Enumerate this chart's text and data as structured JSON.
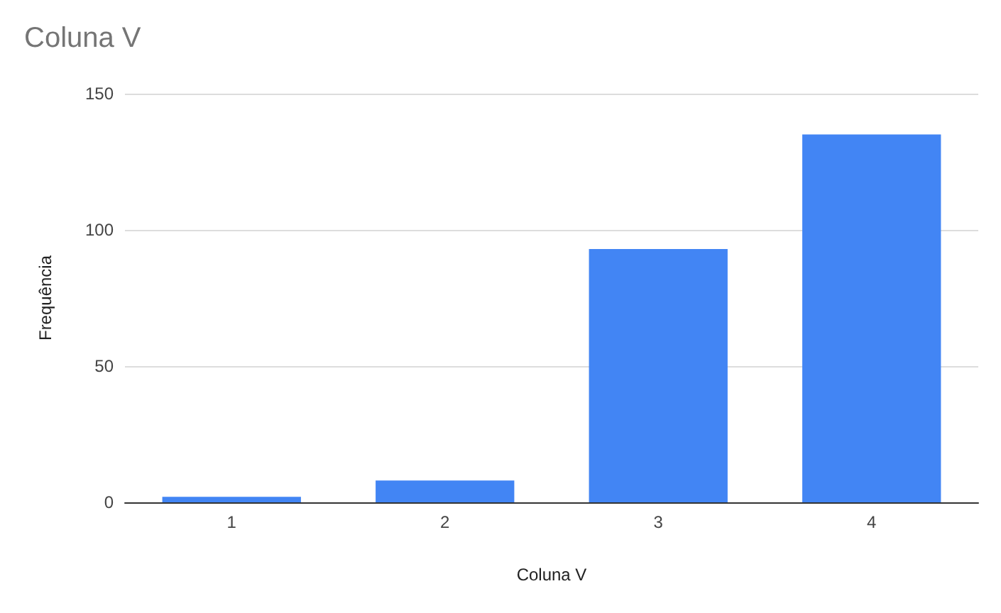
{
  "chart_data": {
    "type": "bar",
    "title": "Coluna V",
    "xlabel": "Coluna V",
    "ylabel": "Frequência",
    "categories": [
      "1",
      "2",
      "3",
      "4"
    ],
    "values": [
      2,
      8,
      93,
      135
    ],
    "color": "#4285f4",
    "ylim": [
      0,
      150
    ],
    "yticks": [
      0,
      50,
      100,
      150
    ],
    "grid": "y"
  }
}
